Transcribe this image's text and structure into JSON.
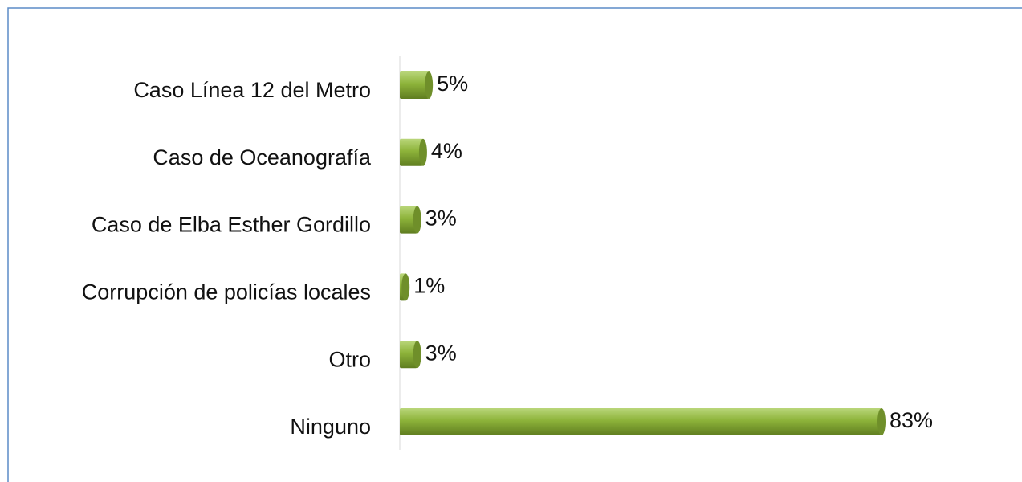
{
  "chart_data": {
    "type": "bar",
    "orientation": "horizontal",
    "categories": [
      "Caso Línea 12 del Metro",
      "Caso de Oceanografía",
      "Caso de Elba Esther Gordillo",
      "Corrupción de policías locales",
      "Otro",
      "Ninguno"
    ],
    "values": [
      5,
      4,
      3,
      1,
      3,
      83
    ],
    "value_labels": [
      "5%",
      "4%",
      "3%",
      "1%",
      "3%",
      "83%"
    ],
    "color": "#8db33a"
  }
}
